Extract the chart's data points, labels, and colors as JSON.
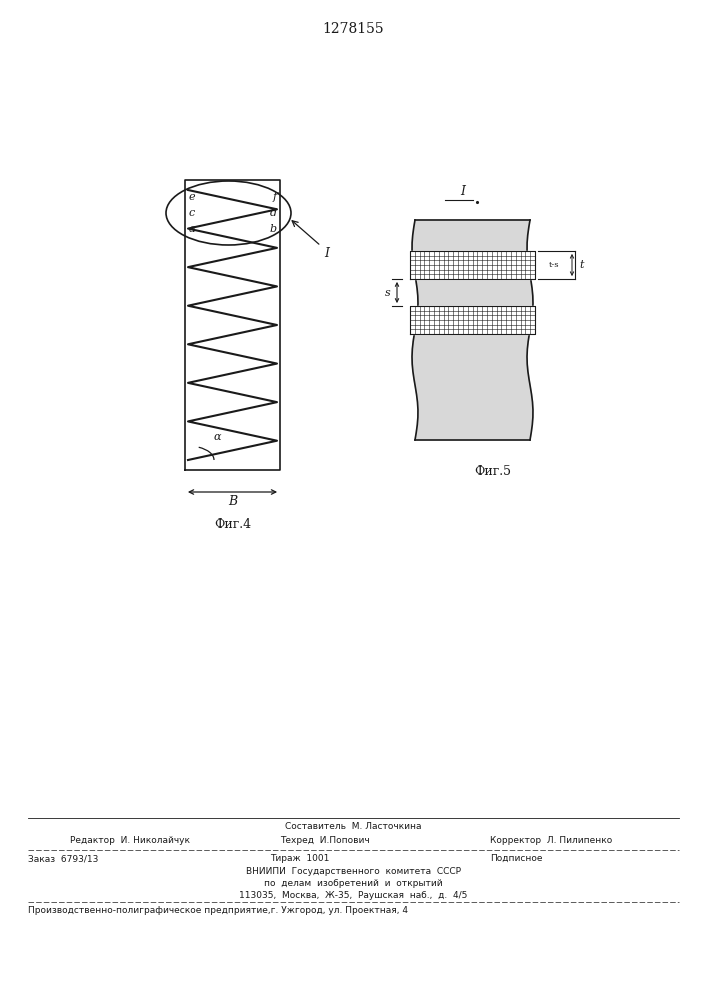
{
  "title_text": "1278155",
  "bg_color": "#ffffff",
  "line_color": "#1a1a1a",
  "fig4_label": "Фиг.4",
  "fig5_label": "Фиг.5",
  "footer": {
    "line1": "Составитель  М. Ласточкина",
    "line2_left": "Редактор  И. Николайчук",
    "line2_mid": "Техред  И.Попович",
    "line2_right": "Корректор  Л. Пилипенко",
    "line3_left": "Заказ  6793/13",
    "line3_mid": "Тираж  1001",
    "line3_right": "Подписное",
    "line4": "ВНИИПИ  Государственного  комитета  СССР",
    "line5": "по  делам  изобретений  и  открытий",
    "line6": "113035,  Москва,  Ж-35,  Раушская  наб.,  д.  4/5",
    "line7": "Производственно-полиграфическое предприятие,г. Ужгород, ул. Проектная, 4"
  }
}
